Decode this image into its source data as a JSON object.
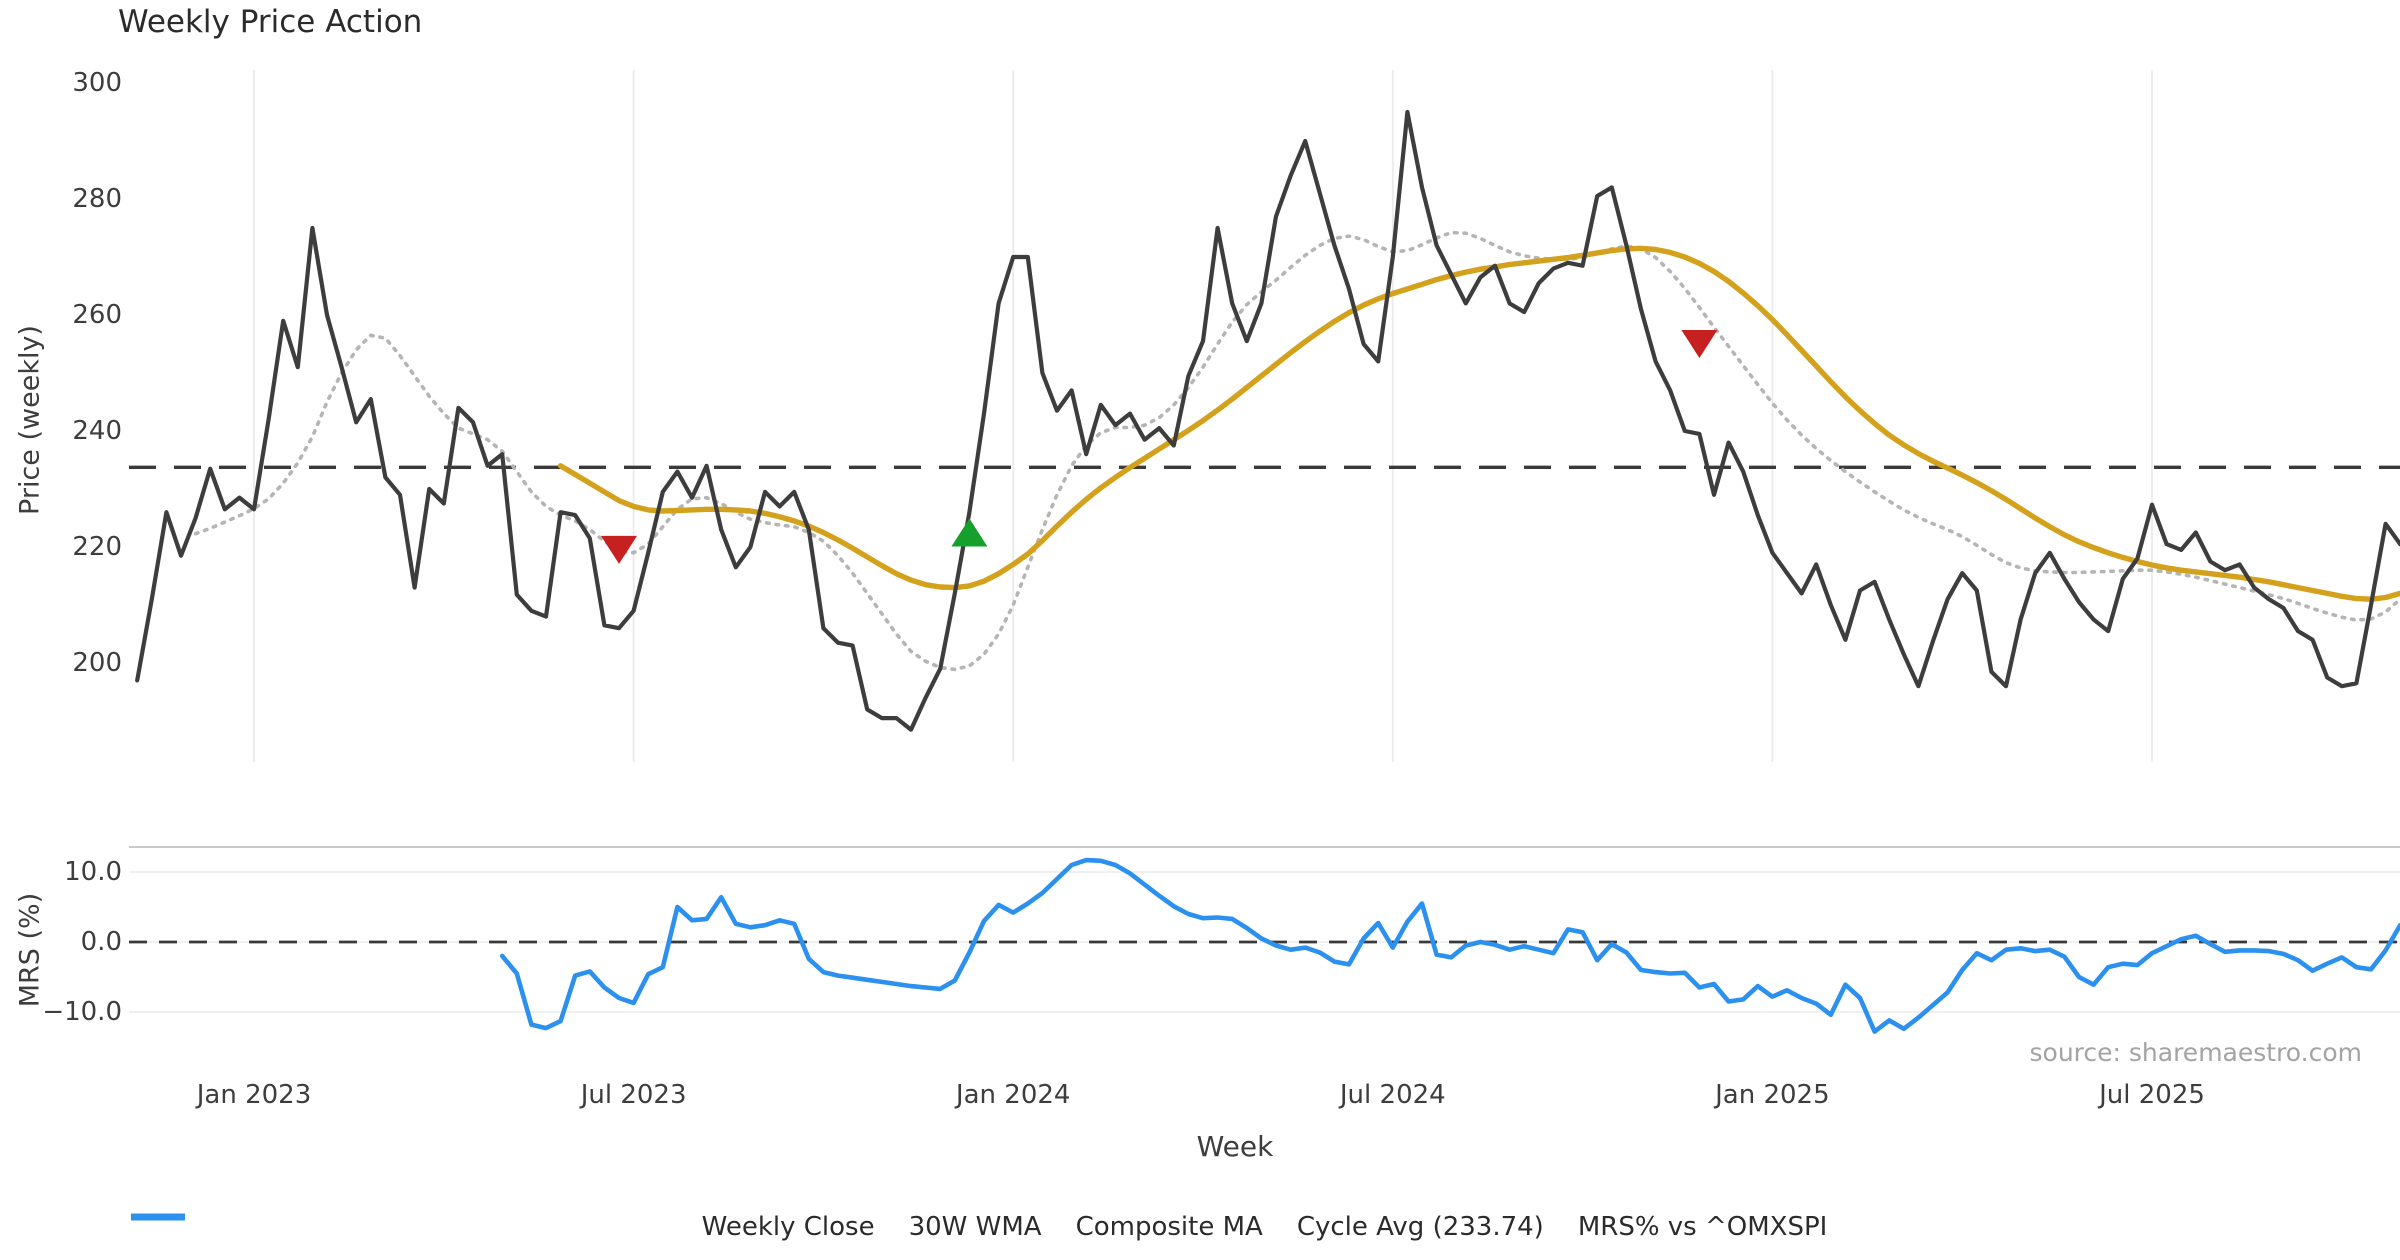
{
  "chart_data": {
    "type": "line",
    "title": "Weekly Price Action",
    "source": "source: sharemaestro.com",
    "x_axis": {
      "label": "Week",
      "unit": "week_index",
      "total_weeks": 156,
      "tick_weeks": [
        8,
        34,
        60,
        86,
        112,
        138
      ],
      "tick_labels": [
        "Jan 2023",
        "Jul 2023",
        "Jan 2024",
        "Jul 2024",
        "Jan 2025",
        "Jul 2025"
      ]
    },
    "legend": [
      {
        "label": "Weekly Close",
        "swatch": "solid",
        "color": "#3d3d3d"
      },
      {
        "label": "30W WMA",
        "swatch": "solid",
        "color": "#d4a11d"
      },
      {
        "label": "Composite MA",
        "swatch": "dotted",
        "color": "#b5b5b5"
      },
      {
        "label": "Cycle Avg (233.74)",
        "swatch": "dashed",
        "color": "#3a3a3a"
      },
      {
        "label": "MRS% vs ^OMXSPI",
        "swatch": "solid",
        "color": "#2b90ee"
      }
    ],
    "panels": [
      {
        "name": "price",
        "ylabel": "Price (weekly)",
        "ylim": [
          195,
          300
        ],
        "yticks": {
          "values": [
            300,
            280,
            260,
            240,
            220,
            200
          ],
          "labels": [
            "300",
            "280",
            "260",
            "240",
            "220",
            "200"
          ]
        },
        "grid": "vertical",
        "ref_line": {
          "name": "cycle_avg",
          "value": 233.74,
          "style": "dashed",
          "color": "#3a3a3a"
        },
        "markers": [
          {
            "name": "sell-signal-1",
            "week": 33,
            "value": 219.5,
            "shape": "triangle-down",
            "color": "#c62020"
          },
          {
            "name": "buy-signal-1",
            "week": 57,
            "value": 222.5,
            "shape": "triangle-up",
            "color": "#15a02c"
          },
          {
            "name": "sell-signal-2",
            "week": 107,
            "value": 255,
            "shape": "triangle-down",
            "color": "#c62020"
          }
        ],
        "series": [
          {
            "name": "Composite MA",
            "color": "#b5b5b5",
            "style": "dotted",
            "width": 3.6,
            "start_week": 4,
            "values": [
              222.3,
              223.2,
              224.3,
              225.4,
              226.6,
              228.3,
              231,
              234.5,
              239,
              245,
              250,
              254,
              256.5,
              256,
              253,
              249.5,
              246,
              243,
              240.5,
              239.5,
              238.5,
              236.5,
              233,
              229.5,
              227,
              225.5,
              224.5,
              223,
              221,
              219.3,
              219,
              220.5,
              223.5,
              226.5,
              228.3,
              228.5,
              227.5,
              226,
              224.8,
              224.2,
              223.8,
              223.5,
              222.5,
              221,
              218.5,
              215.5,
              212,
              208.5,
              205,
              202,
              200.3,
              199.2,
              198.9,
              199.5,
              201.5,
              205,
              210,
              216.5,
              223,
              229,
              234,
              237.5,
              239.7,
              240.6,
              240.6,
              241,
              242.3,
              244.5,
              247.5,
              251,
              255,
              258.8,
              261.8,
              264,
              266,
              268.2,
              270.3,
              272,
              273.2,
              273.6,
              273,
              271.8,
              270.9,
              271.1,
              272.1,
              273.3,
              274.2,
              274.1,
              273.2,
              272,
              270.9,
              270.2,
              269.8,
              269.6,
              269.6,
              269.9,
              270.6,
              271.4,
              271.9,
              271.4,
              269.9,
              267.5,
              264.6,
              261.3,
              257.9,
              254.6,
              251.3,
              248,
              244.8,
              241.9,
              239.3,
              237,
              234.9,
              233,
              231.2,
              229.5,
              227.9,
              226.4,
              225.1,
              224,
              223,
              221.8,
              220.3,
              218.7,
              217.3,
              216.4,
              215.9,
              215.7,
              215.6,
              215.6,
              215.7,
              215.8,
              215.9,
              216,
              216,
              215.7,
              215.3,
              214.8,
              214.2,
              213.6,
              213,
              212.4,
              211.8,
              211.1,
              210.3,
              209.4,
              208.6,
              207.9,
              207.4,
              207.6,
              208.8,
              211
            ]
          },
          {
            "name": "30W WMA",
            "color": "#d4a11d",
            "style": "solid",
            "width": 5.4,
            "start_week": 29,
            "values": [
              234,
              232.5,
              231,
              229.5,
              228,
              227,
              226.4,
              226.2,
              226.3,
              226.4,
              226.5,
              226.5,
              226.4,
              226.2,
              225.8,
              225.2,
              224.5,
              223.6,
              222.5,
              221.2,
              219.8,
              218.3,
              216.8,
              215.4,
              214.3,
              213.5,
              213.1,
              213.0,
              213.3,
              214.1,
              215.4,
              217,
              218.8,
              221.1,
              223.6,
              226,
              228.2,
              230.2,
              232,
              233.7,
              235.3,
              236.9,
              238.5,
              240.1,
              241.8,
              243.6,
              245.5,
              247.5,
              249.5,
              251.5,
              253.5,
              255.4,
              257.2,
              258.9,
              260.4,
              261.7,
              262.8,
              263.7,
              264.5,
              265.3,
              266.1,
              266.8,
              267.4,
              267.9,
              268.3,
              268.7,
              269,
              269.3,
              269.6,
              269.9,
              270.3,
              270.7,
              271.1,
              271.4,
              271.5,
              271.3,
              270.8,
              270,
              268.9,
              267.5,
              265.8,
              263.8,
              261.6,
              259.2,
              256.6,
              253.9,
              251.2,
              248.5,
              245.9,
              243.5,
              241.3,
              239.3,
              237.6,
              236.1,
              234.8,
              233.6,
              232.4,
              231.1,
              229.7,
              228.2,
              226.6,
              225,
              223.5,
              222.1,
              220.9,
              219.9,
              219,
              218.2,
              217.5,
              216.9,
              216.4,
              216,
              215.7,
              215.4,
              215.1,
              214.8,
              214.4,
              214,
              213.5,
              213,
              212.5,
              212,
              211.5,
              211.1,
              211,
              211.3,
              212
            ]
          },
          {
            "name": "Weekly Close",
            "color": "#3d3d3d",
            "style": "solid",
            "width": 4.2,
            "start_week": 0,
            "values": [
              197,
              211,
              226,
              218.5,
              225,
              233.5,
              226.5,
              228.5,
              226.5,
              242,
              259,
              251,
              275,
              260,
              251,
              241.5,
              245.5,
              232,
              229,
              213,
              230,
              227.5,
              244,
              241.5,
              234,
              236,
              211.8,
              209,
              208,
              226,
              225.5,
              221.5,
              206.5,
              206,
              209,
              219,
              229.5,
              233,
              228.5,
              234,
              223,
              216.5,
              220,
              229.5,
              227,
              229.5,
              223,
              206,
              203.5,
              203,
              192,
              190.5,
              190.5,
              188.5,
              194,
              199,
              212,
              226,
              243,
              262,
              270,
              270,
              250,
              243.5,
              247,
              236,
              244.5,
              241,
              243,
              238.5,
              240.5,
              237.5,
              249.5,
              255.5,
              275,
              262,
              255.5,
              262,
              277,
              284,
              290,
              281,
              272,
              264.5,
              255,
              252,
              270,
              295,
              282,
              272,
              267,
              262,
              266.5,
              268.5,
              262,
              260.5,
              265.5,
              268,
              269,
              268.5,
              280.5,
              282,
              272,
              261,
              252,
              247,
              240,
              239.5,
              229,
              238,
              233,
              225.5,
              219,
              215.5,
              212,
              217,
              210,
              204,
              212.5,
              214,
              207.5,
              201.5,
              196,
              203.8,
              211,
              215.5,
              212.5,
              198.5,
              196,
              207.5,
              215.5,
              219,
              214.5,
              210.5,
              207.5,
              205.5,
              214.5,
              218,
              227.3,
              220.5,
              219.5,
              222.5,
              217.5,
              216,
              217,
              213,
              211,
              209.5,
              205.5,
              204,
              197.5,
              196,
              196.5,
              210,
              224,
              220.5
            ]
          }
        ]
      },
      {
        "name": "mrs",
        "ylabel": "MRS (%)",
        "ylim": [
          -17,
          13.5
        ],
        "yticks": {
          "values": [
            10,
            0,
            -10
          ],
          "labels": [
            "10.0",
            "0.0",
            "−10.0"
          ]
        },
        "grid": "horizontal",
        "ref_line": {
          "name": "zero",
          "value": 0,
          "style": "dashed",
          "color": "#3a3a3a"
        },
        "series": [
          {
            "name": "MRS% vs ^OMXSPI",
            "color": "#2b90ee",
            "style": "solid",
            "width": 4.6,
            "start_week": 25,
            "values": [
              -2,
              -4.5,
              -11.8,
              -12.3,
              -11.3,
              -4.8,
              -4.2,
              -6.5,
              -8,
              -8.7,
              -4.6,
              -3.6,
              5,
              3.1,
              3.3,
              6.4,
              2.6,
              2.1,
              2.4,
              3.1,
              2.6,
              -2.4,
              -4.3,
              -4.8,
              -5.1,
              -5.4,
              -5.7,
              -6,
              -6.3,
              -6.5,
              -6.7,
              -5.5,
              -1.5,
              3,
              5.3,
              4.2,
              5.5,
              7,
              9,
              11,
              11.7,
              11.6,
              11,
              9.8,
              8.2,
              6.6,
              5.1,
              4,
              3.4,
              3.5,
              3.3,
              2,
              0.5,
              -0.5,
              -1.1,
              -0.8,
              -1.5,
              -2.8,
              -3.2,
              0.5,
              2.7,
              -0.8,
              2.9,
              5.5,
              -1.8,
              -2.2,
              -0.5,
              0,
              -0.4,
              -1.1,
              -0.6,
              -1.1,
              -1.6,
              1.8,
              1.4,
              -2.6,
              -0.3,
              -1.5,
              -4,
              -4.3,
              -4.5,
              -4.4,
              -6.5,
              -6,
              -8.5,
              -8.2,
              -6.3,
              -7.8,
              -6.9,
              -8,
              -8.8,
              -10.4,
              -6.1,
              -8,
              -12.8,
              -11.2,
              -12.4,
              -10.8,
              -9,
              -7.2,
              -4,
              -1.6,
              -2.6,
              -1.1,
              -0.9,
              -1.3,
              -1.1,
              -2.1,
              -5,
              -6.1,
              -3.6,
              -3.1,
              -3.3,
              -1.6,
              -0.6,
              0.4,
              0.9,
              -0.3,
              -1.4,
              -1.2,
              -1.2,
              -1.3,
              -1.7,
              -2.6,
              -4.1,
              -3.1,
              -2.2,
              -3.6,
              -3.9,
              -1.2,
              2.4
            ]
          }
        ]
      }
    ],
    "colors": {
      "grid": "#ebebeb",
      "mrs_top_spine": "#c9c9c9",
      "tick_label": "#3d3d3d",
      "title": "#2b2b2b"
    }
  }
}
